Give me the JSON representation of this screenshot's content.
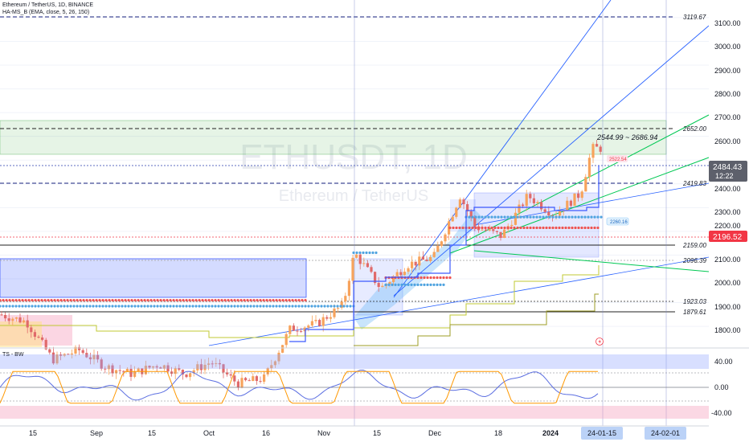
{
  "header": {
    "symbol_line": "Ethereum / TetherUS, 1D, BINANCE",
    "indicator_line": "HA-MS_B (EMA, close, 5, 26, 150)"
  },
  "watermark": {
    "ticker": "ETHUSDT, 1D",
    "name": "Ethereum / TetherUS"
  },
  "oscillator": {
    "title": "TS - BW",
    "ticks": [
      "40.00",
      "0.00",
      "-40.00"
    ],
    "upper_band": 40,
    "lower_band": -40
  },
  "price_axis": {
    "ticks": [
      "3100.00",
      "3000.00",
      "2900.00",
      "2800.00",
      "2700.00",
      "2600.00",
      "2400.00",
      "2300.00",
      "2200.00",
      "2100.00",
      "2000.00",
      "1900.00",
      "1800.00"
    ],
    "current_price": "2484.43",
    "countdown": "12:22",
    "alert_price": "2196.52"
  },
  "time_axis": {
    "labels": [
      "15",
      "Sep",
      "15",
      "Oct",
      "16",
      "Nov",
      "15",
      "Dec",
      "18",
      "2024",
      "24-01-15",
      "24-02-01"
    ]
  },
  "annotations": {
    "level_3119": "3119.67",
    "level_2652": "2652.00",
    "level_2419": "2419.83",
    "level_2159": "2159.00",
    "level_2096": "2096.39",
    "level_1923": "1923.03",
    "level_1879": "1879.61",
    "range_label": "2544.99 ~ 2686.94",
    "tag_2522": "2522.54",
    "tag_2260": "2260.16"
  },
  "colors": {
    "candle_up": "#f7a35c",
    "candle_down": "#e06a6a",
    "box_blue": "#3d5afe",
    "green_zone": "#4caf50",
    "trend_blue": "#2962ff",
    "trend_green": "#00c853",
    "current_price_bg": "#5d606b",
    "alert_bg": "#f23645"
  },
  "chart_data": {
    "type": "candlestick",
    "title": "ETHUSDT, 1D",
    "ylim": [
      1760,
      3180
    ],
    "x_start": "2023-08-08",
    "x_end": "2024-02-12",
    "series": [
      {
        "values": [
          {
            "date": "2023-08-08",
            "close": 1850
          },
          {
            "date": "2023-08-15",
            "close": 1820
          },
          {
            "date": "2023-08-22",
            "close": 1660
          },
          {
            "date": "2023-08-29",
            "close": 1700
          },
          {
            "date": "2023-09-05",
            "close": 1630
          },
          {
            "date": "2023-09-12",
            "close": 1600
          },
          {
            "date": "2023-09-19",
            "close": 1640
          },
          {
            "date": "2023-09-26",
            "close": 1600
          },
          {
            "date": "2023-10-03",
            "close": 1650
          },
          {
            "date": "2023-10-10",
            "close": 1560
          },
          {
            "date": "2023-10-17",
            "close": 1580
          },
          {
            "date": "2023-10-24",
            "close": 1790
          },
          {
            "date": "2023-10-31",
            "close": 1810
          },
          {
            "date": "2023-11-07",
            "close": 1890
          },
          {
            "date": "2023-11-10",
            "close": 2110
          },
          {
            "date": "2023-11-17",
            "close": 1960
          },
          {
            "date": "2023-11-24",
            "close": 2060
          },
          {
            "date": "2023-12-01",
            "close": 2090
          },
          {
            "date": "2023-12-08",
            "close": 2350
          },
          {
            "date": "2023-12-12",
            "close": 2220
          },
          {
            "date": "2023-12-19",
            "close": 2180
          },
          {
            "date": "2023-12-26",
            "close": 2350
          },
          {
            "date": "2024-01-02",
            "close": 2270
          },
          {
            "date": "2024-01-09",
            "close": 2360
          },
          {
            "date": "2024-01-12",
            "close": 2550
          },
          {
            "date": "2024-01-16",
            "close": 2550
          },
          {
            "date": "2024-01-18",
            "close": 2650
          },
          {
            "date": "2024-01-21",
            "close": 2484
          }
        ]
      }
    ]
  }
}
